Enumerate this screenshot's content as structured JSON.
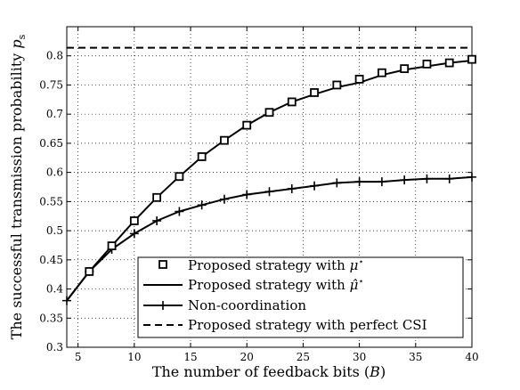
{
  "chart_data": {
    "type": "line",
    "xlabel": "The number of feedback bits (B)",
    "ylabel": "The successful transmission probability p_s",
    "xlim": [
      4,
      40
    ],
    "ylim": [
      0.3,
      0.85
    ],
    "xticks": [
      5,
      10,
      15,
      20,
      25,
      30,
      35,
      40
    ],
    "yticks": [
      0.3,
      0.35,
      0.4,
      0.45,
      0.5,
      0.55,
      0.6,
      0.65,
      0.7,
      0.75,
      0.8
    ],
    "grid": true,
    "legend_position": "bottom-right",
    "series": [
      {
        "name": "Proposed strategy with μ*",
        "style": "square-markers",
        "x": [
          6,
          8,
          10,
          12,
          14,
          16,
          18,
          20,
          22,
          24,
          26,
          28,
          30,
          32,
          34,
          36,
          38,
          40
        ],
        "y": [
          0.43,
          0.474,
          0.517,
          0.557,
          0.593,
          0.627,
          0.655,
          0.681,
          0.703,
          0.721,
          0.737,
          0.75,
          0.76,
          0.771,
          0.778,
          0.786,
          0.788,
          0.794
        ]
      },
      {
        "name": "Proposed strategy with μ̂*",
        "style": "solid",
        "x": [
          4,
          6,
          8,
          10,
          12,
          14,
          16,
          18,
          20,
          22,
          24,
          26,
          28,
          30,
          32,
          34,
          36,
          38,
          40
        ],
        "y": [
          0.38,
          0.43,
          0.474,
          0.517,
          0.557,
          0.593,
          0.627,
          0.655,
          0.681,
          0.703,
          0.721,
          0.734,
          0.746,
          0.754,
          0.767,
          0.776,
          0.782,
          0.788,
          0.792
        ]
      },
      {
        "name": "Non-coordination",
        "style": "solid-plus",
        "x": [
          4,
          6,
          8,
          10,
          12,
          14,
          16,
          18,
          20,
          22,
          24,
          26,
          28,
          30,
          32,
          34,
          36,
          38,
          40
        ],
        "y": [
          0.38,
          0.43,
          0.468,
          0.495,
          0.517,
          0.533,
          0.544,
          0.554,
          0.562,
          0.567,
          0.572,
          0.577,
          0.582,
          0.584,
          0.584,
          0.587,
          0.589,
          0.589,
          0.592
        ]
      },
      {
        "name": "Proposed strategy with perfect CSI",
        "style": "dashed",
        "x": [
          4,
          40
        ],
        "y": [
          0.814,
          0.814
        ]
      }
    ]
  }
}
